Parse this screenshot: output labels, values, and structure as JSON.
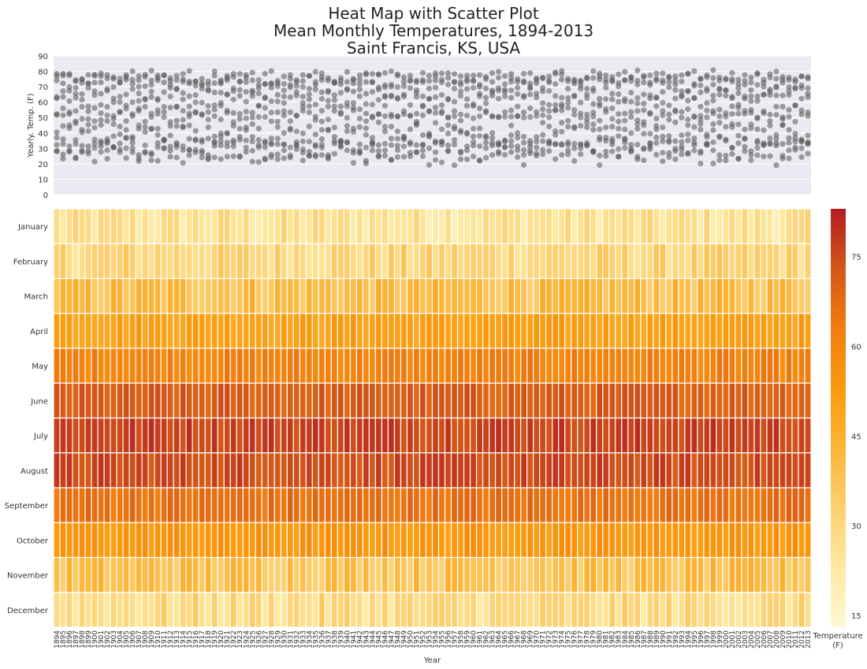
{
  "chart_data": [
    {
      "type": "scatter",
      "title": [
        "Heat Map with Scatter Plot",
        "Mean Monthly Temperatures, 1894-2013",
        "Saint Francis, KS, USA"
      ],
      "ylabel": "Yearly. Temp. (F)",
      "ylim": [
        0,
        90
      ],
      "yticks": [
        0,
        10,
        20,
        30,
        40,
        50,
        60,
        70,
        80,
        90
      ],
      "grid": true,
      "point_color": "#555555",
      "background_color": "#eaeaf2",
      "note": "Each year shows 12 points, one per month's mean temperature (same values as heat map)."
    },
    {
      "type": "heatmap",
      "xlabel": "Year",
      "x_start": 1894,
      "x_end": 2013,
      "months": [
        "January",
        "February",
        "March",
        "April",
        "May",
        "June",
        "July",
        "August",
        "September",
        "October",
        "November",
        "December"
      ],
      "monthly_base_means": [
        26,
        31,
        40,
        51,
        61,
        71,
        77,
        75,
        66,
        54,
        39,
        29
      ],
      "value_range": [
        13,
        83
      ],
      "colorbar": {
        "label": "Temperature\n(F)",
        "ticks": [
          15,
          30,
          45,
          60,
          75
        ],
        "colors": [
          "#fff8d8",
          "#fde9a0",
          "#fdd071",
          "#fcb537",
          "#fb9a0c",
          "#f07d10",
          "#d25718",
          "#b41c20"
        ]
      }
    }
  ]
}
